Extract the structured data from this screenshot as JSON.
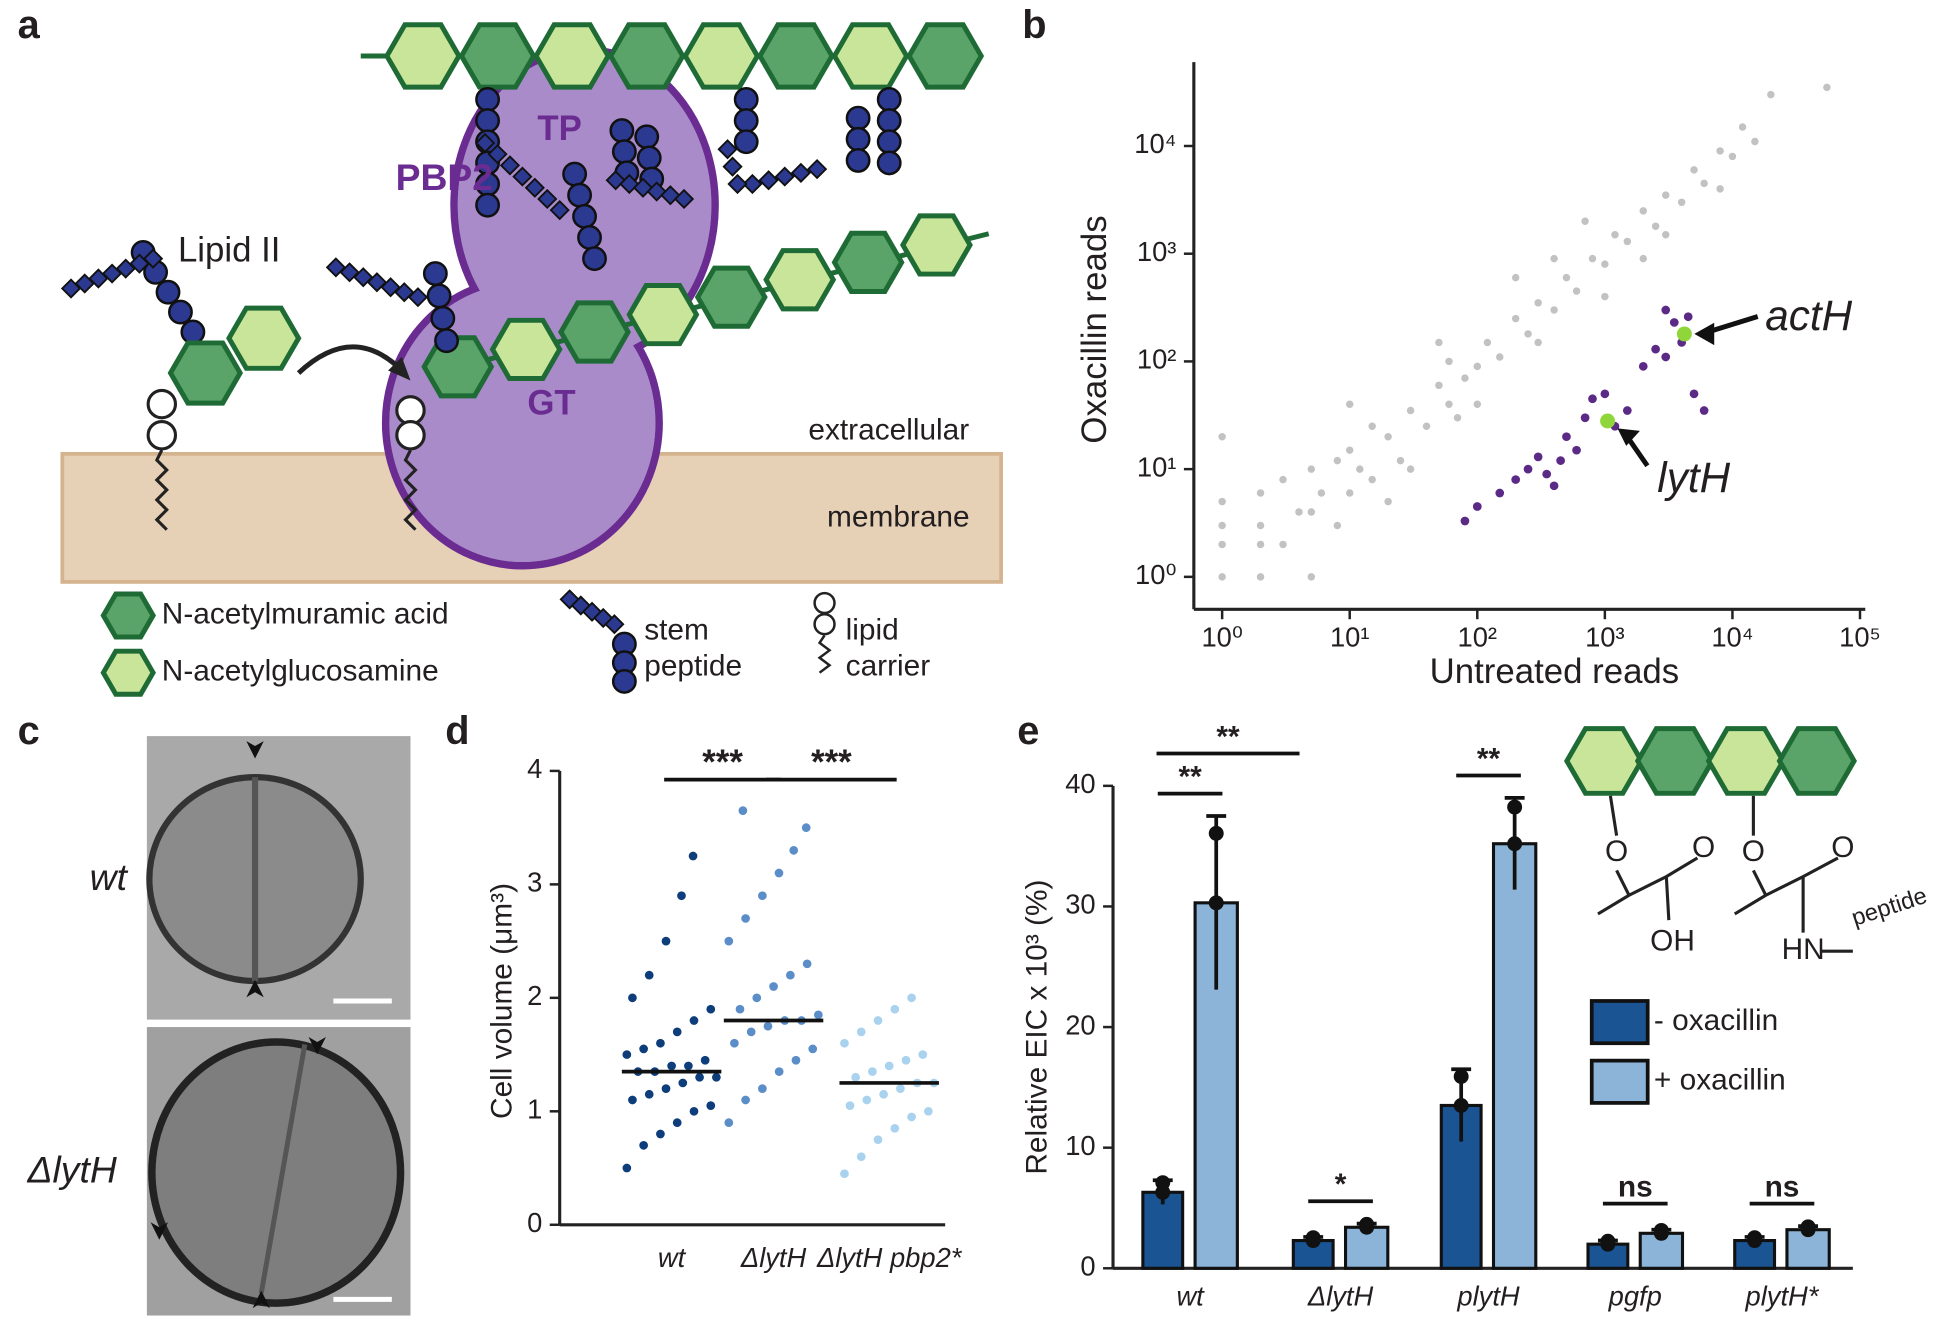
{
  "panel_labels": [
    "a",
    "b",
    "c",
    "d",
    "e"
  ],
  "diagram": {
    "pbp2": "PBP2",
    "tp": "TP",
    "gt": "GT",
    "lipid_ii": "Lipid II",
    "extracellular": "extracellular",
    "membrane": "membrane",
    "legend": [
      [
        "N-acetylmuramic acid"
      ],
      [
        "N-acetylglucosamine"
      ],
      [
        "stem",
        "peptide"
      ],
      [
        "lipid",
        "carrier"
      ]
    ]
  },
  "micrographs": {
    "labels": [
      "wt",
      "ΔlytH"
    ]
  },
  "structure": {
    "labels": [
      "O",
      "O",
      "OH",
      "O",
      "O",
      "HN",
      "peptide"
    ]
  },
  "chart_data": [
    {
      "type": "scatter",
      "xlabel": "Untreated reads",
      "ylabel": "Oxacillin reads",
      "log_x": true,
      "log_y": true,
      "xlim": [
        0.6,
        110000
      ],
      "ylim": [
        0.5,
        60000
      ],
      "xticks": [
        {
          "value": 1,
          "label": "10⁰"
        },
        {
          "value": 10,
          "label": "10¹"
        },
        {
          "value": 100,
          "label": "10²"
        },
        {
          "value": 1000,
          "label": "10³"
        },
        {
          "value": 10000,
          "label": "10⁴"
        },
        {
          "value": 100000,
          "label": "10⁵"
        }
      ],
      "yticks": [
        {
          "value": 1,
          "label": "10⁰"
        },
        {
          "value": 10,
          "label": "10¹"
        },
        {
          "value": 100,
          "label": "10²"
        },
        {
          "value": 1000,
          "label": "10³"
        },
        {
          "value": 10000,
          "label": "10⁴"
        }
      ],
      "series": [
        {
          "color": "#c2c2c2",
          "x": [
            1,
            1,
            1,
            1,
            1,
            2,
            2,
            2,
            3,
            3,
            5,
            5,
            5,
            8,
            8,
            10,
            10,
            12,
            15,
            20,
            25,
            30,
            40,
            50,
            60,
            80,
            100,
            120,
            150,
            200,
            250,
            300,
            400,
            500,
            600,
            800,
            1000,
            1200,
            1500,
            2000,
            2500,
            3000,
            4000,
            5000,
            6000,
            8000,
            10000,
            12000,
            15000,
            20000,
            55000,
            30,
            100,
            300,
            1000,
            3000,
            10,
            50,
            200,
            700,
            20,
            70,
            2,
            4,
            6,
            15,
            400,
            2000,
            8000,
            60
          ],
          "values": [
            1,
            2,
            3,
            5,
            20,
            1,
            3,
            6,
            2,
            8,
            1,
            4,
            10,
            3,
            12,
            6,
            15,
            10,
            8,
            20,
            12,
            35,
            25,
            60,
            40,
            70,
            90,
            150,
            110,
            250,
            180,
            350,
            300,
            600,
            450,
            900,
            800,
            1500,
            1300,
            2500,
            1800,
            3500,
            3000,
            6000,
            4500,
            9000,
            8000,
            15000,
            11000,
            30000,
            35000,
            10,
            40,
            150,
            400,
            1500,
            40,
            150,
            600,
            2000,
            5,
            30,
            2,
            4,
            6,
            25,
            900,
            900,
            4000,
            100
          ]
        },
        {
          "color": "#5b2a86",
          "x": [
            80,
            100,
            150,
            200,
            250,
            300,
            350,
            400,
            450,
            500,
            600,
            800,
            1000,
            1500,
            2000,
            2500,
            3000,
            3500,
            3000,
            4000,
            5000,
            6000,
            4500,
            700,
            1200
          ],
          "values": [
            3.3,
            4.5,
            6,
            8,
            10,
            13,
            9,
            7,
            12,
            20,
            15,
            45,
            50,
            35,
            90,
            130,
            110,
            230,
            300,
            150,
            50,
            35,
            260,
            30,
            25
          ]
        },
        {
          "color": "#8fd63a",
          "x": [
            4200,
            1050
          ],
          "values": [
            180,
            28
          ]
        }
      ],
      "annotations": [
        "actH",
        "lytH"
      ]
    },
    {
      "type": "strip",
      "ylabel": "Cell volume (μm³)",
      "categories": [
        "wt",
        "ΔlytH",
        "ΔlytH pbp2*"
      ],
      "colors": [
        "#0d3d7a",
        "#5b8ec9",
        "#a9d2ef"
      ],
      "values": [
        1.35,
        1.8,
        1.25
      ],
      "points": [
        [
          0.5,
          0.7,
          0.8,
          0.9,
          1.0,
          1.05,
          1.1,
          1.15,
          1.2,
          1.25,
          1.3,
          1.3,
          1.35,
          1.35,
          1.4,
          1.4,
          1.45,
          1.5,
          1.55,
          1.6,
          1.7,
          1.8,
          1.9,
          2.0,
          2.2,
          2.5,
          2.9,
          3.25
        ],
        [
          0.9,
          1.1,
          1.2,
          1.35,
          1.45,
          1.55,
          1.6,
          1.7,
          1.75,
          1.8,
          1.8,
          1.85,
          1.9,
          2.0,
          2.1,
          2.2,
          2.3,
          2.5,
          2.7,
          2.9,
          3.1,
          3.3,
          3.5,
          3.65
        ],
        [
          0.45,
          0.6,
          0.75,
          0.85,
          0.95,
          1.0,
          1.05,
          1.1,
          1.15,
          1.2,
          1.25,
          1.25,
          1.3,
          1.35,
          1.4,
          1.45,
          1.5,
          1.6,
          1.7,
          1.8,
          1.9,
          2.0
        ]
      ],
      "ylim": [
        0,
        4
      ],
      "yticks": [
        0,
        1,
        2,
        3,
        4
      ],
      "significance": [
        "***",
        "***"
      ]
    },
    {
      "type": "bar",
      "ylabel": "Relative EIC x 10³ (%)",
      "categories": [
        "wt",
        "ΔlytH",
        "plytH",
        "pgfp",
        "plytH*"
      ],
      "series": [
        {
          "name": "- oxacillin",
          "color": "#1a5493",
          "values": [
            6.3,
            2.3,
            13.5,
            2.0,
            2.3
          ],
          "errors": [
            1.0,
            0.3,
            3.0,
            0.3,
            0.3
          ]
        },
        {
          "name": "+ oxacillin",
          "color": "#8bb4d8",
          "values": [
            30.3,
            3.4,
            35.2,
            2.9,
            3.2
          ],
          "errors": [
            7.2,
            0.3,
            3.8,
            0.3,
            0.3
          ]
        }
      ],
      "ylim": [
        0,
        40
      ],
      "yticks": [
        0,
        10,
        20,
        30,
        40
      ],
      "significance": [
        "**",
        "*",
        "**",
        "ns",
        "ns"
      ],
      "significance_across": "**"
    }
  ]
}
